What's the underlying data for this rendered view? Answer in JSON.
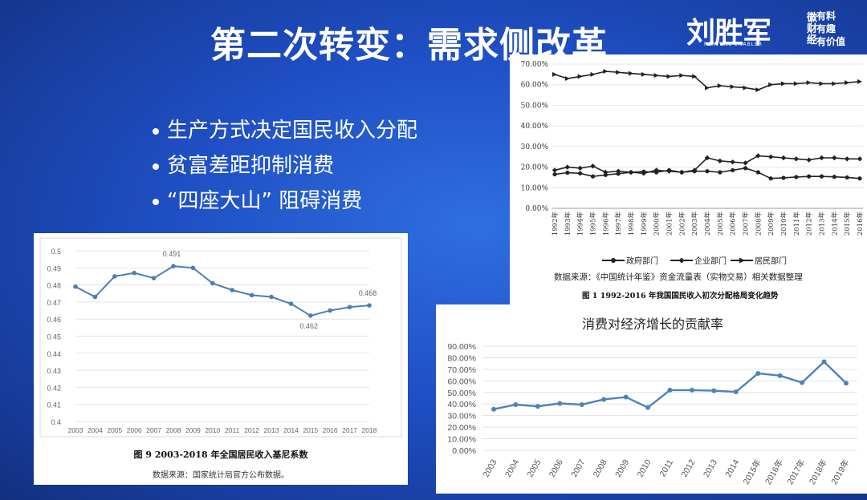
{
  "slide": {
    "title": "第二次转变：需求侧改革",
    "bullets": [
      "生产方式决定国民收入分配",
      "贫富差距抑制消费",
      "“四座大山”  阻碍消费"
    ]
  },
  "logo": {
    "name": "刘胜军",
    "sub": "微财经",
    "en": "FORTUNE ENABLER",
    "slogan": [
      "有料",
      "有趣",
      "有价值"
    ]
  },
  "colors": {
    "background": "#1f4fc4",
    "gini_line": "#4a7ebb",
    "consumption_line": "#4f81bd",
    "dist_line": "#222222"
  },
  "chart_data": [
    {
      "type": "line",
      "id": "gini",
      "caption": "图 9   2003-2018 年全国居民收入基尼系数",
      "source": "数据来源：国家统计局官方公布数据。",
      "x": [
        "2003",
        "2004",
        "2005",
        "2006",
        "2007",
        "2008",
        "2009",
        "2010",
        "2011",
        "2012",
        "2013",
        "2014",
        "2015",
        "2016",
        "2017",
        "2018"
      ],
      "values": [
        0.479,
        0.473,
        0.485,
        0.487,
        0.484,
        0.491,
        0.49,
        0.481,
        0.477,
        0.474,
        0.473,
        0.469,
        0.462,
        0.465,
        0.467,
        0.468
      ],
      "yticks": [
        "0.5",
        "0.49",
        "0.48",
        "0.47",
        "0.46",
        "0.45",
        "0.44",
        "0.43",
        "0.42",
        "0.41",
        "0.4"
      ],
      "ylim": [
        0.4,
        0.5
      ],
      "annotations": [
        {
          "label": "0.491",
          "index": 5
        },
        {
          "label": "0.462",
          "index": 12
        },
        {
          "label": "0.468",
          "index": 15
        }
      ],
      "grid": true
    },
    {
      "type": "line",
      "id": "distribution",
      "caption": "图 1   1992-2016 年我国国民收入初次分配格局变化趋势",
      "source": "数据来源：《中国统计年鉴》资金流量表（实物交易）相关数据整理",
      "x": [
        "1992年",
        "1993年",
        "1994年",
        "1995年",
        "1996年",
        "1997年",
        "1998年",
        "1999年",
        "2000年",
        "2001年",
        "2002年",
        "2003年",
        "2004年",
        "2005年",
        "2006年",
        "2007年",
        "2008年",
        "2009年",
        "2010年",
        "2011年",
        "2012年",
        "2013年",
        "2014年",
        "2015年",
        "2016年"
      ],
      "yticks": [
        "70.00%",
        "60.00%",
        "50.00%",
        "40.00%",
        "30.00%",
        "20.00%",
        "10.00%",
        "0.00%"
      ],
      "ylim": [
        0,
        70
      ],
      "series": [
        {
          "name": "政府部门",
          "marker": "circle",
          "values": [
            16.5,
            17.3,
            17.0,
            15.5,
            16.2,
            16.8,
            17.5,
            17.8,
            17.5,
            18.5,
            17.5,
            18.0,
            18.0,
            17.5,
            18.5,
            19.5,
            17.5,
            14.5,
            14.8,
            15.2,
            15.5,
            15.5,
            15.3,
            15.0,
            14.5
          ]
        },
        {
          "name": "企业部门",
          "marker": "diamond",
          "values": [
            18.5,
            20.0,
            19.5,
            20.5,
            17.5,
            18.0,
            17.5,
            17.0,
            18.5,
            18.0,
            17.5,
            18.5,
            24.5,
            23.0,
            22.5,
            22.0,
            25.5,
            25.0,
            24.5,
            24.0,
            23.5,
            24.5,
            24.5,
            24.0,
            24.0
          ]
        },
        {
          "name": "居民部门",
          "marker": "arrow",
          "values": [
            65.0,
            63.0,
            64.0,
            65.0,
            66.5,
            66.0,
            65.5,
            65.0,
            64.5,
            64.0,
            64.5,
            64.0,
            58.5,
            59.5,
            59.0,
            58.5,
            57.5,
            60.0,
            60.5,
            60.5,
            61.0,
            60.5,
            60.5,
            61.0,
            61.5
          ]
        }
      ],
      "legend": "bottom",
      "grid": true
    },
    {
      "type": "line",
      "id": "consumption",
      "title": "消费对经济增长的贡献率",
      "x": [
        "2003",
        "2004",
        "2005",
        "2006",
        "2007",
        "2008",
        "2009",
        "2010",
        "2011",
        "2012",
        "2013",
        "2014",
        "2015年",
        "2016年",
        "2017年",
        "2018年",
        "2019年"
      ],
      "values": [
        35.5,
        39.5,
        38.0,
        40.5,
        39.5,
        44.0,
        46.0,
        37.0,
        52.0,
        52.0,
        51.5,
        50.5,
        66.5,
        64.5,
        58.5,
        76.5,
        58.0
      ],
      "yticks": [
        "90.00%",
        "80.00%",
        "70.00%",
        "60.00%",
        "50.00%",
        "40.00%",
        "30.00%",
        "20.00%",
        "10.00%",
        "0.00%"
      ],
      "ylim": [
        0,
        90
      ],
      "grid": true
    }
  ]
}
